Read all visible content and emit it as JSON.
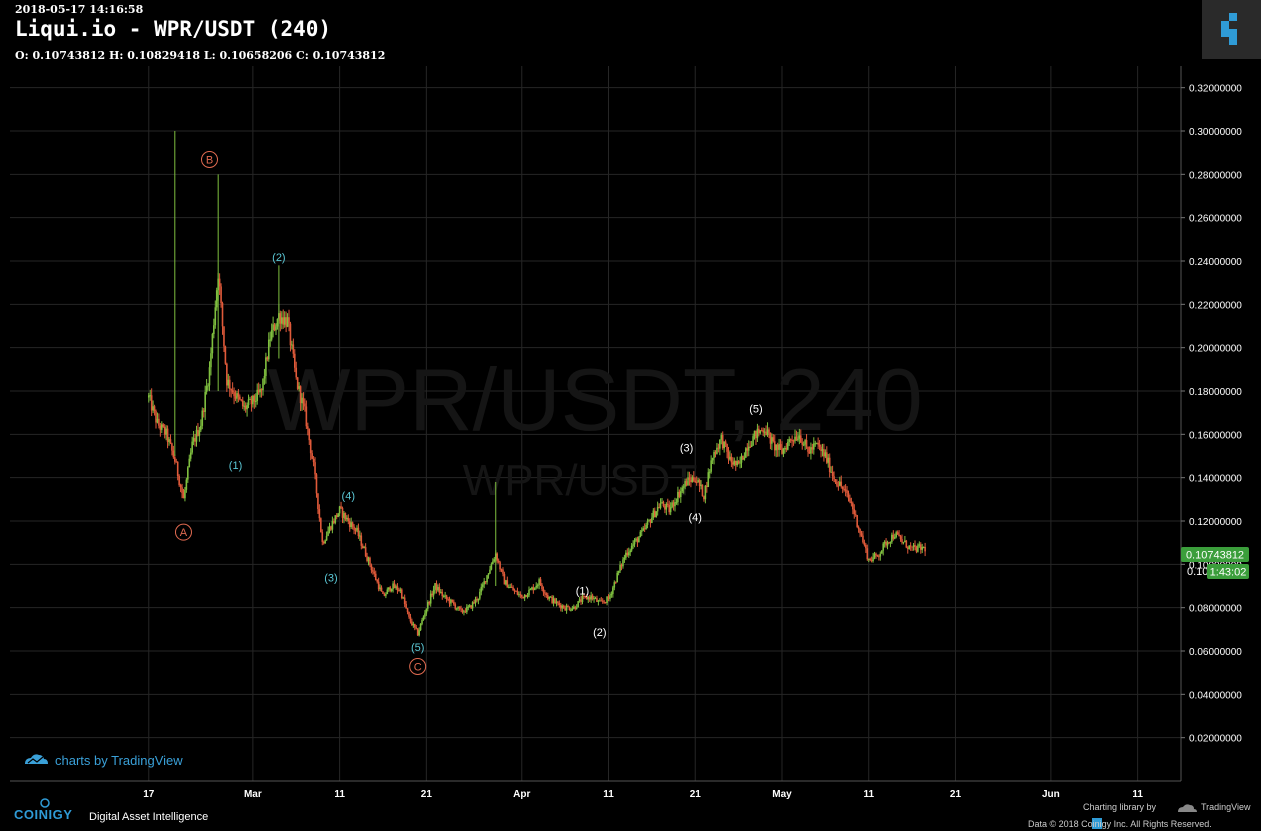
{
  "header": {
    "timestamp": "2018-05-17 14:16:58",
    "title": "Liqui.io - WPR/USDT (240)",
    "ohlc": "O: 0.10743812 H: 0.10829418 L: 0.10658206 C: 0.10743812"
  },
  "watermark": {
    "big": "WPR/USDT, 240",
    "small": "WPR/USDT"
  },
  "price_tags": {
    "last": "0.10743812",
    "countdown": "1:43:02",
    "covered_tick": "0.10"
  },
  "branding": {
    "tradingview_link": "charts by TradingView",
    "coinigy": "COINIGY",
    "tagline": "Digital Asset Intelligence",
    "charting_library": "Charting library by",
    "tradingview": "TradingView",
    "copyright": "Data © 2018  Coinigy Inc. All Rights Reserved."
  },
  "colors": {
    "up": "#7fbf3f",
    "down": "#e05a3a",
    "cyan_label": "#5bc8d6",
    "red_label": "#e06a50",
    "white_label": "#ffffff",
    "price_tag": "#3b9e3b",
    "grid": "#262626",
    "accent": "#2f9bd6"
  },
  "chart_data": {
    "type": "candlestick",
    "ylim": [
      0,
      0.33
    ],
    "y_ticks": [
      "0.02000000",
      "0.04000000",
      "0.06000000",
      "0.08000000",
      "0.10000000",
      "0.12000000",
      "0.14000000",
      "0.16000000",
      "0.18000000",
      "0.20000000",
      "0.22000000",
      "0.24000000",
      "0.26000000",
      "0.28000000",
      "0.30000000",
      "0.32000000"
    ],
    "x_ticks": [
      {
        "label": "17",
        "date": "2018-02-17"
      },
      {
        "label": "Mar",
        "date": "2018-03-01"
      },
      {
        "label": "11",
        "date": "2018-03-11"
      },
      {
        "label": "21",
        "date": "2018-03-21"
      },
      {
        "label": "Apr",
        "date": "2018-04-01"
      },
      {
        "label": "11",
        "date": "2018-04-11"
      },
      {
        "label": "21",
        "date": "2018-04-21"
      },
      {
        "label": "May",
        "date": "2018-05-01"
      },
      {
        "label": "11",
        "date": "2018-05-11"
      },
      {
        "label": "21",
        "date": "2018-05-21"
      },
      {
        "label": "Jun",
        "date": "2018-06-01"
      },
      {
        "label": "11",
        "date": "2018-06-11"
      }
    ],
    "x_range": [
      "2018-02-01",
      "2018-06-16"
    ],
    "price_path": [
      [
        "2018-02-17",
        0.177
      ],
      [
        "2018-02-18",
        0.165
      ],
      [
        "2018-02-19",
        0.16
      ],
      [
        "2018-02-20",
        0.148
      ],
      [
        "2018-02-21",
        0.13
      ],
      [
        "2018-02-22",
        0.155
      ],
      [
        "2018-02-23",
        0.165
      ],
      [
        "2018-02-24",
        0.19
      ],
      [
        "2018-02-25",
        0.235
      ],
      [
        "2018-02-26",
        0.185
      ],
      [
        "2018-02-27",
        0.178
      ],
      [
        "2018-02-28",
        0.172
      ],
      [
        "2018-03-01",
        0.175
      ],
      [
        "2018-03-02",
        0.18
      ],
      [
        "2018-03-03",
        0.205
      ],
      [
        "2018-03-04",
        0.215
      ],
      [
        "2018-03-05",
        0.212
      ],
      [
        "2018-03-06",
        0.185
      ],
      [
        "2018-03-07",
        0.17
      ],
      [
        "2018-03-08",
        0.145
      ],
      [
        "2018-03-09",
        0.11
      ],
      [
        "2018-03-10",
        0.118
      ],
      [
        "2018-03-11",
        0.125
      ],
      [
        "2018-03-12",
        0.12
      ],
      [
        "2018-03-13",
        0.115
      ],
      [
        "2018-03-14",
        0.105
      ],
      [
        "2018-03-15",
        0.095
      ],
      [
        "2018-03-16",
        0.085
      ],
      [
        "2018-03-17",
        0.09
      ],
      [
        "2018-03-18",
        0.088
      ],
      [
        "2018-03-19",
        0.075
      ],
      [
        "2018-03-20",
        0.068
      ],
      [
        "2018-03-21",
        0.08
      ],
      [
        "2018-03-22",
        0.09
      ],
      [
        "2018-03-23",
        0.085
      ],
      [
        "2018-03-24",
        0.082
      ],
      [
        "2018-03-25",
        0.078
      ],
      [
        "2018-03-26",
        0.08
      ],
      [
        "2018-03-27",
        0.085
      ],
      [
        "2018-03-28",
        0.095
      ],
      [
        "2018-03-29",
        0.105
      ],
      [
        "2018-03-30",
        0.092
      ],
      [
        "2018-03-31",
        0.088
      ],
      [
        "2018-04-01",
        0.085
      ],
      [
        "2018-04-02",
        0.088
      ],
      [
        "2018-04-03",
        0.092
      ],
      [
        "2018-04-04",
        0.085
      ],
      [
        "2018-04-05",
        0.082
      ],
      [
        "2018-04-06",
        0.08
      ],
      [
        "2018-04-07",
        0.08
      ],
      [
        "2018-04-08",
        0.084
      ],
      [
        "2018-04-09",
        0.085
      ],
      [
        "2018-04-10",
        0.082
      ],
      [
        "2018-04-11",
        0.084
      ],
      [
        "2018-04-12",
        0.095
      ],
      [
        "2018-04-13",
        0.105
      ],
      [
        "2018-04-14",
        0.11
      ],
      [
        "2018-04-15",
        0.115
      ],
      [
        "2018-04-16",
        0.122
      ],
      [
        "2018-04-17",
        0.128
      ],
      [
        "2018-04-18",
        0.125
      ],
      [
        "2018-04-19",
        0.132
      ],
      [
        "2018-04-20",
        0.138
      ],
      [
        "2018-04-21",
        0.14
      ],
      [
        "2018-04-22",
        0.132
      ],
      [
        "2018-04-23",
        0.15
      ],
      [
        "2018-04-24",
        0.158
      ],
      [
        "2018-04-25",
        0.148
      ],
      [
        "2018-04-26",
        0.145
      ],
      [
        "2018-04-27",
        0.155
      ],
      [
        "2018-04-28",
        0.16
      ],
      [
        "2018-04-29",
        0.163
      ],
      [
        "2018-04-30",
        0.155
      ],
      [
        "2018-05-01",
        0.152
      ],
      [
        "2018-05-02",
        0.158
      ],
      [
        "2018-05-03",
        0.16
      ],
      [
        "2018-05-04",
        0.152
      ],
      [
        "2018-05-05",
        0.155
      ],
      [
        "2018-05-06",
        0.15
      ],
      [
        "2018-05-07",
        0.14
      ],
      [
        "2018-05-08",
        0.135
      ],
      [
        "2018-05-09",
        0.128
      ],
      [
        "2018-05-10",
        0.115
      ],
      [
        "2018-05-11",
        0.102
      ],
      [
        "2018-05-12",
        0.104
      ],
      [
        "2018-05-13",
        0.11
      ],
      [
        "2018-05-14",
        0.114
      ],
      [
        "2018-05-15",
        0.11
      ],
      [
        "2018-05-16",
        0.107
      ],
      [
        "2018-05-17",
        0.1074
      ]
    ],
    "spikes": [
      {
        "date": "2018-02-20",
        "high": 0.3,
        "low": 0.15
      },
      {
        "date": "2018-02-25",
        "high": 0.28,
        "low": 0.18
      },
      {
        "date": "2018-03-04",
        "high": 0.238,
        "low": 0.195
      },
      {
        "date": "2018-03-29",
        "high": 0.138,
        "low": 0.09
      }
    ],
    "annotations": [
      {
        "text": "(1)",
        "date": "2018-02-27",
        "price": 0.144,
        "color": "cyan"
      },
      {
        "text": "(2)",
        "date": "2018-03-04",
        "price": 0.24,
        "color": "cyan"
      },
      {
        "text": "(3)",
        "date": "2018-03-10",
        "price": 0.092,
        "color": "cyan"
      },
      {
        "text": "(4)",
        "date": "2018-03-12",
        "price": 0.13,
        "color": "cyan"
      },
      {
        "text": "(5)",
        "date": "2018-03-20",
        "price": 0.06,
        "color": "cyan"
      },
      {
        "text": "A",
        "date": "2018-02-21",
        "price": 0.113,
        "color": "red",
        "circled": true
      },
      {
        "text": "B",
        "date": "2018-02-24",
        "price": 0.285,
        "color": "red",
        "circled": true
      },
      {
        "text": "C",
        "date": "2018-03-20",
        "price": 0.051,
        "color": "red",
        "circled": true
      },
      {
        "text": "(1)",
        "date": "2018-04-08",
        "price": 0.086,
        "color": "white"
      },
      {
        "text": "(2)",
        "date": "2018-04-10",
        "price": 0.067,
        "color": "white"
      },
      {
        "text": "(3)",
        "date": "2018-04-20",
        "price": 0.152,
        "color": "white"
      },
      {
        "text": "(4)",
        "date": "2018-04-21",
        "price": 0.12,
        "color": "white"
      },
      {
        "text": "(5)",
        "date": "2018-04-28",
        "price": 0.17,
        "color": "white"
      }
    ]
  }
}
